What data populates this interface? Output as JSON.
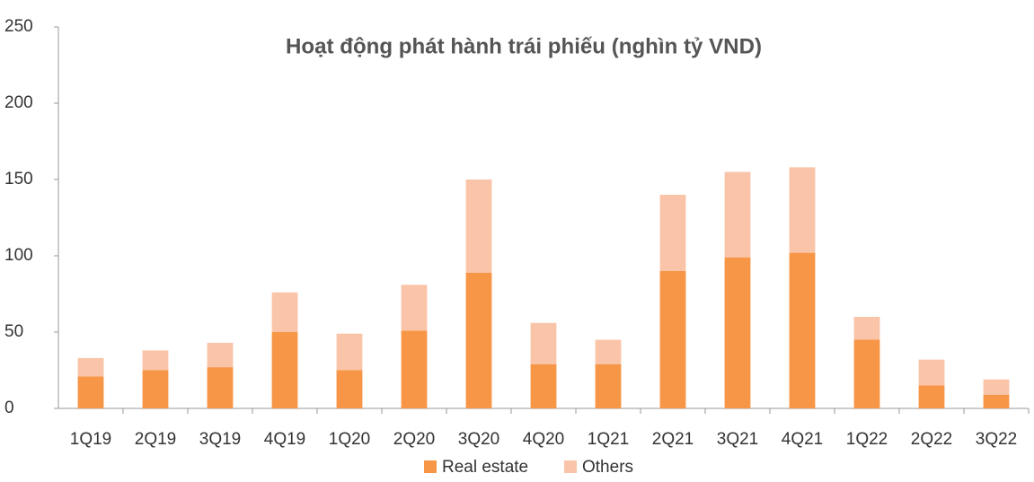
{
  "chart_data": {
    "type": "stacked_bar",
    "title": "Hoạt động phát hành trái phiếu (nghìn tỷ VND)",
    "categories": [
      "1Q19",
      "2Q19",
      "3Q19",
      "4Q19",
      "1Q20",
      "2Q20",
      "3Q20",
      "4Q20",
      "1Q21",
      "2Q21",
      "3Q21",
      "4Q21",
      "1Q22",
      "2Q22",
      "3Q22"
    ],
    "series": [
      {
        "name": "Real estate",
        "color": "#f79646",
        "values": [
          21,
          25,
          27,
          50,
          25,
          51,
          89,
          29,
          29,
          90,
          99,
          102,
          45,
          15,
          9
        ]
      },
      {
        "name": "Others",
        "color": "#fac4a8",
        "values": [
          12,
          13,
          16,
          26,
          24,
          30,
          61,
          27,
          16,
          50,
          56,
          56,
          15,
          17,
          10
        ]
      }
    ],
    "ylim": [
      0,
      250
    ],
    "yticks": [
      0,
      50,
      100,
      150,
      200,
      250
    ],
    "legend": "bottom"
  }
}
